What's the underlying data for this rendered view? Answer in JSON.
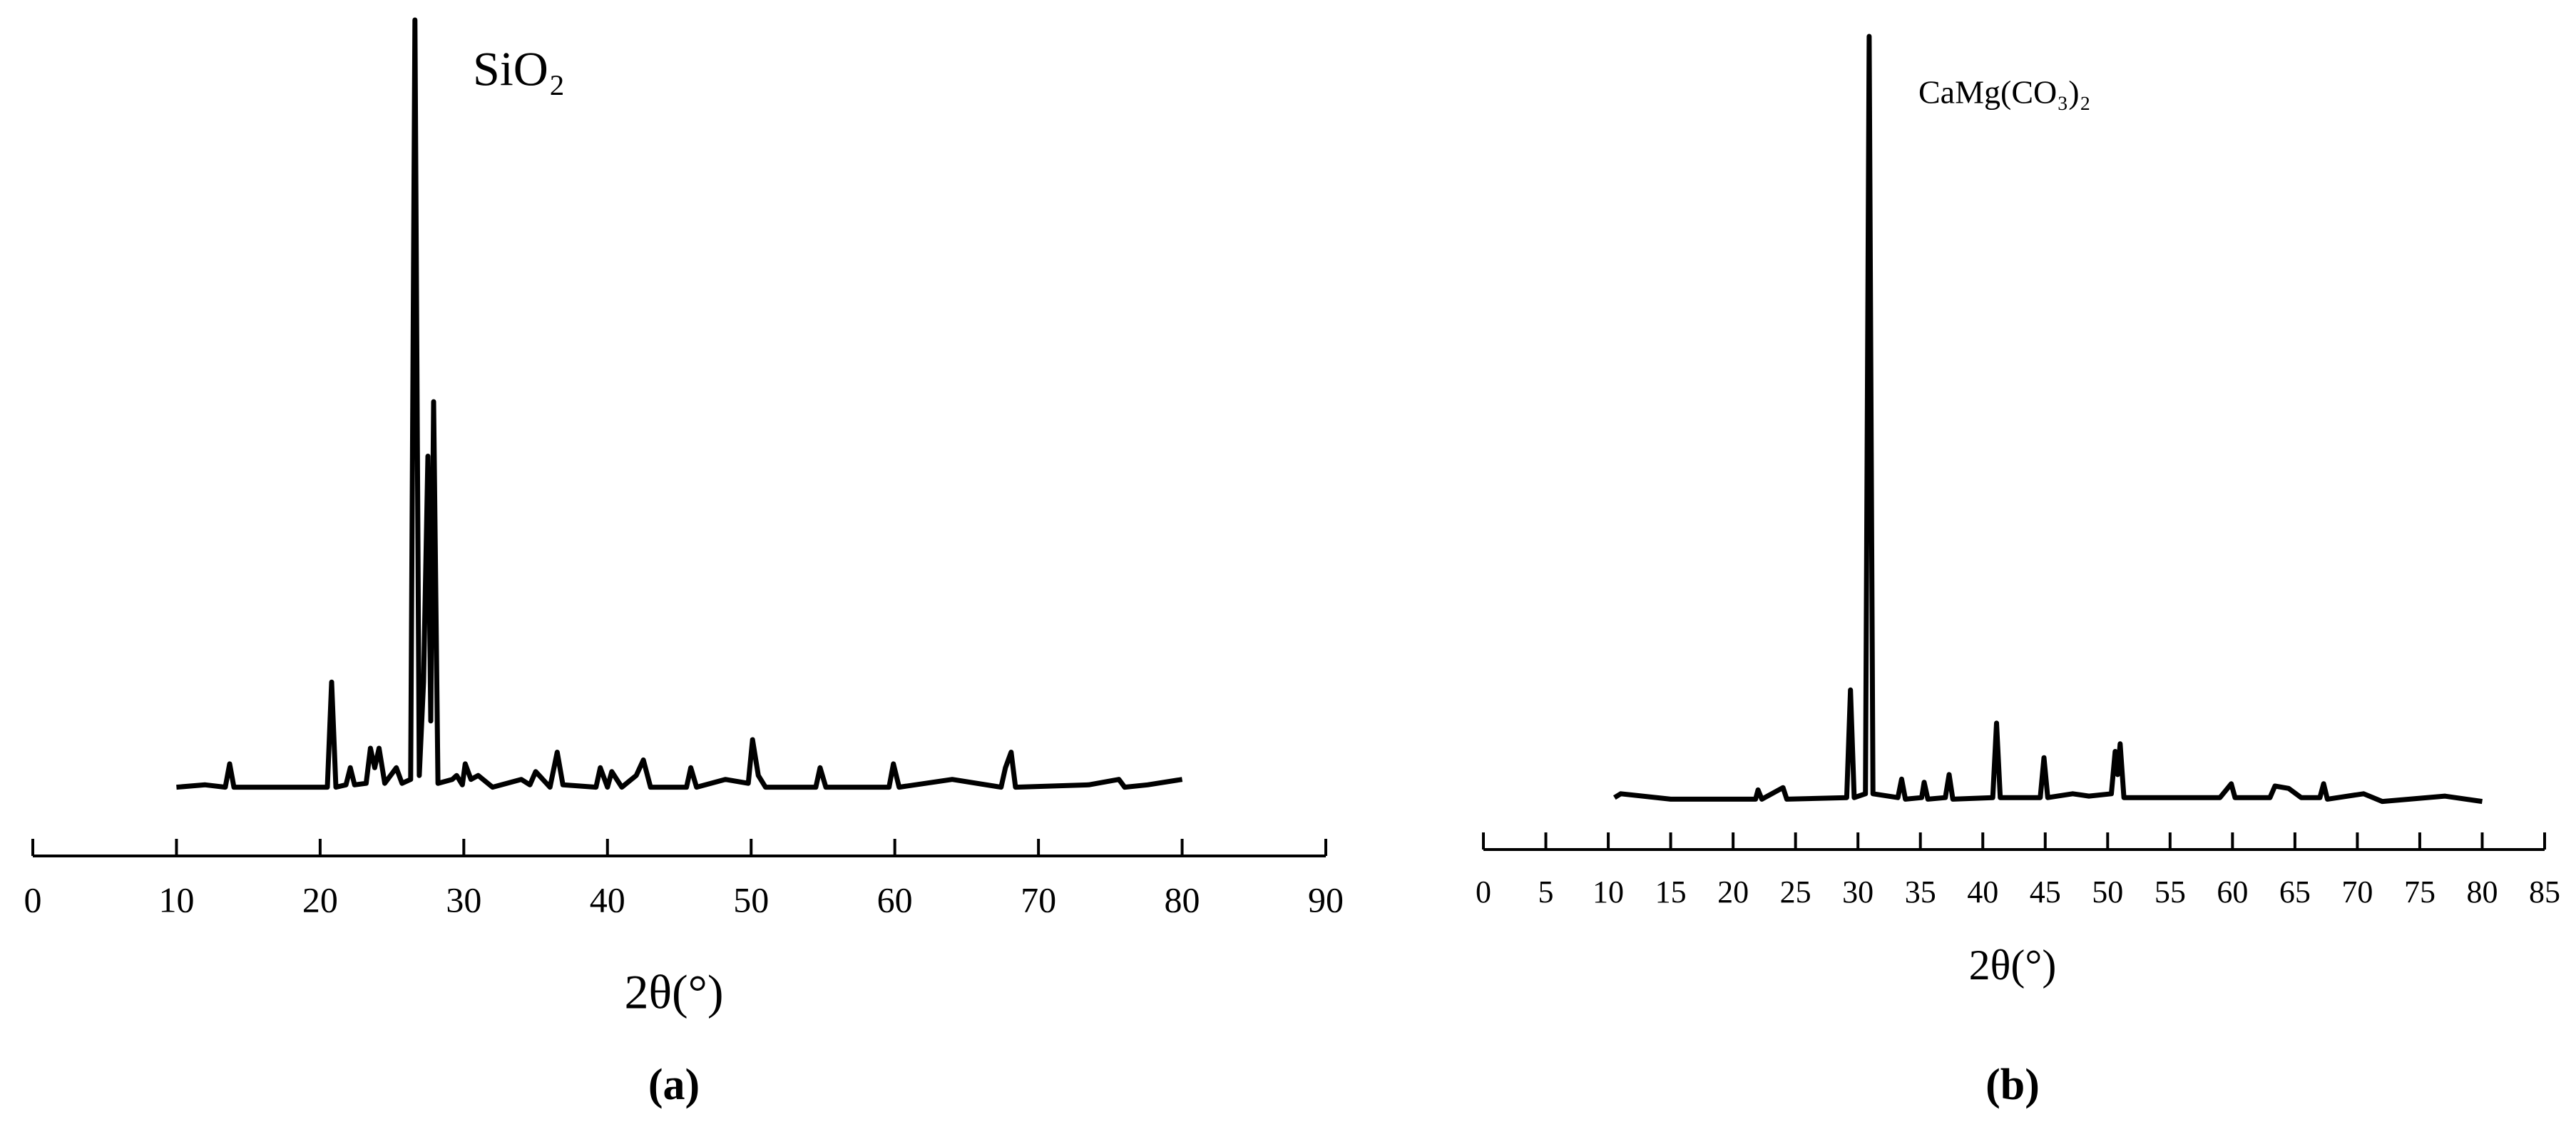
{
  "chart_data": [
    {
      "type": "line",
      "title": "SiO₂",
      "x_label": "2θ(°)",
      "panel_label": "(a)",
      "xlim": [
        0,
        90
      ],
      "xticks": [
        0,
        10,
        20,
        30,
        40,
        50,
        60,
        70,
        80,
        90
      ],
      "ylim": [
        0,
        100
      ],
      "series": [
        {
          "name": "SiO₂",
          "color": "#000000",
          "x": [
            10,
            12,
            13.4,
            13.7,
            14,
            17,
            20.5,
            20.8,
            21.1,
            21.8,
            22.1,
            22.4,
            23.2,
            23.5,
            23.8,
            24.1,
            24.5,
            25.3,
            25.7,
            26.3,
            26.6,
            26.9,
            27.2,
            27.5,
            27.7,
            27.9,
            28.2,
            29.2,
            29.5,
            29.9,
            30.1,
            30.5,
            31,
            32,
            34,
            34.6,
            35,
            36,
            36.5,
            36.9,
            39.2,
            39.5,
            40,
            40.3,
            41,
            42,
            42.5,
            43,
            45.5,
            45.8,
            46.2,
            48.2,
            49.8,
            50.1,
            50.5,
            51,
            54.5,
            54.8,
            55.2,
            59.6,
            59.9,
            60.3,
            64,
            67.4,
            67.7,
            68.1,
            68.4,
            73.5,
            75.6,
            76,
            77.6,
            80
          ],
          "values": [
            1.5,
            1.8,
            1.5,
            4.5,
            1.5,
            1.5,
            1.5,
            15,
            1.5,
            1.8,
            4,
            1.8,
            2,
            6.5,
            4,
            6.5,
            2,
            4,
            2,
            2.5,
            100,
            3,
            15,
            44,
            10,
            51,
            2,
            2.5,
            3,
            1.8,
            4.5,
            2.5,
            3,
            1.5,
            2.5,
            1.8,
            3.5,
            1.5,
            6,
            1.8,
            1.5,
            4,
            1.5,
            3.5,
            1.5,
            3,
            5,
            1.5,
            1.5,
            4,
            1.5,
            2.5,
            2,
            7.6,
            3,
            1.5,
            1.5,
            4,
            1.5,
            1.5,
            4.5,
            1.5,
            2.5,
            1.5,
            4,
            6,
            1.5,
            1.8,
            2.5,
            1.5,
            1.8,
            2.5
          ]
        }
      ]
    },
    {
      "type": "line",
      "title": "CaMg(CO₃)₂",
      "x_label": "2θ(°)",
      "panel_label": "(b)",
      "xlim": [
        0,
        85
      ],
      "xticks": [
        0,
        5,
        10,
        15,
        20,
        25,
        30,
        35,
        40,
        45,
        50,
        55,
        60,
        65,
        70,
        75,
        80,
        85
      ],
      "ylim": [
        0,
        100
      ],
      "series": [
        {
          "name": "CaMg(CO₃)₂",
          "color": "#000000",
          "x": [
            10.5,
            11,
            15,
            21.8,
            22,
            22.3,
            24,
            24.3,
            29.1,
            29.4,
            29.7,
            30.6,
            30.9,
            31.2,
            33.2,
            33.5,
            33.8,
            35.1,
            35.3,
            35.6,
            37,
            37.3,
            37.6,
            40.8,
            41.1,
            41.4,
            44.6,
            44.9,
            45.2,
            47.2,
            48.5,
            50.3,
            50.6,
            50.8,
            51,
            51.3,
            59,
            59.5,
            59.9,
            60.2,
            63,
            63.4,
            64.5,
            65.5,
            67,
            67.3,
            67.6,
            70.5,
            72,
            77,
            80
          ],
          "values": [
            1,
            1.5,
            0.8,
            0.8,
            2,
            0.8,
            2.3,
            0.8,
            1,
            15,
            1,
            1.5,
            100,
            1.5,
            1,
            3.4,
            0.8,
            1,
            3,
            0.8,
            1,
            4,
            0.8,
            1,
            10.7,
            1,
            1,
            6.2,
            1,
            1.5,
            1.2,
            1.5,
            7,
            4,
            8,
            1,
            1,
            2,
            2.8,
            1,
            1,
            2.5,
            2.2,
            1,
            1,
            2.8,
            0.8,
            1.5,
            0.5,
            1.2,
            0.5
          ]
        }
      ]
    }
  ]
}
